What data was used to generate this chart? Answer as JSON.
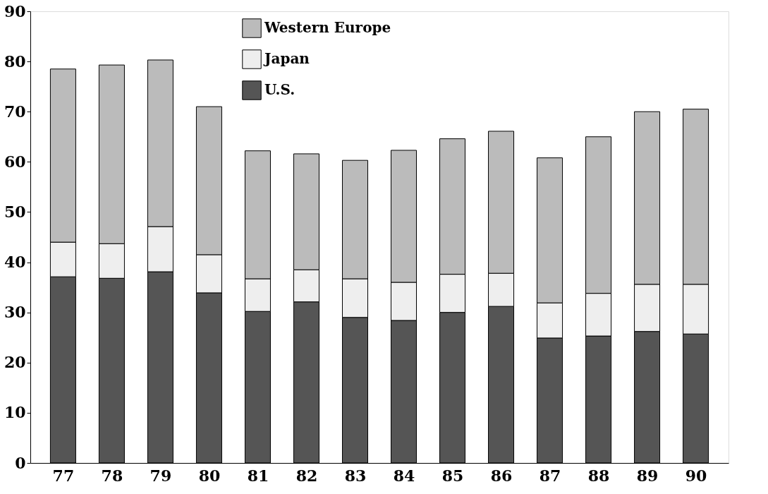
{
  "chart_data": {
    "type": "bar",
    "stacked": true,
    "categories": [
      "77",
      "78",
      "79",
      "80",
      "81",
      "82",
      "83",
      "84",
      "85",
      "86",
      "87",
      "88",
      "89",
      "90"
    ],
    "series": [
      {
        "name": "U.S.",
        "color": "#555555",
        "values": [
          37.1,
          36.8,
          38.1,
          33.9,
          30.2,
          32.1,
          29.0,
          28.4,
          30.0,
          31.2,
          24.9,
          25.3,
          26.2,
          25.7
        ]
      },
      {
        "name": "Japan",
        "color": "#eeeeee",
        "values": [
          6.9,
          6.9,
          9.0,
          7.6,
          6.5,
          6.4,
          7.7,
          7.6,
          7.6,
          6.6,
          7.0,
          8.5,
          9.4,
          9.9
        ]
      },
      {
        "name": "Western Europe",
        "color": "#bbbbbb",
        "values": [
          34.5,
          35.6,
          33.2,
          29.5,
          25.5,
          23.1,
          23.6,
          26.3,
          27.0,
          28.3,
          28.9,
          31.2,
          34.4,
          34.9
        ]
      }
    ],
    "ylim": [
      0,
      90
    ],
    "yticks": [
      0,
      10,
      20,
      30,
      40,
      50,
      60,
      70,
      80,
      90
    ],
    "grid": false,
    "legend": "top"
  }
}
